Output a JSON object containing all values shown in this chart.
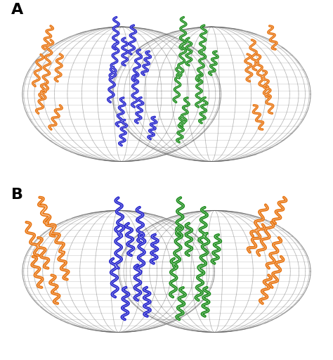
{
  "panel_A_label": "A",
  "panel_B_label": "B",
  "background_color": "#ffffff",
  "mesh_color": "#555555",
  "mesh_alpha": 0.35,
  "label_fontsize": 16,
  "label_fontweight": "bold",
  "colors": {
    "orange": "#E8720C",
    "blue": "#2222CC",
    "green": "#1A8C1A",
    "dark_orange": "#B84000",
    "cyan": "#00AACC"
  },
  "figsize": [
    4.74,
    5.12
  ],
  "dpi": 100
}
